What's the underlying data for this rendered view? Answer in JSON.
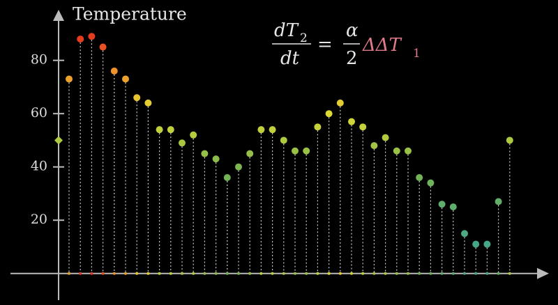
{
  "chart_data": {
    "type": "stem",
    "y_label": "Temperature",
    "equation": {
      "lhs_num": "dT",
      "lhs_num_sub": "2",
      "lhs_den": "dt",
      "eq": "=",
      "rhs_num": "α",
      "rhs_den": "2",
      "rhs_term": "ΔΔT",
      "rhs_sub": "1"
    },
    "values": [
      73,
      88,
      89,
      85,
      76,
      73,
      66,
      64,
      54,
      54,
      49,
      52,
      45,
      43,
      36,
      40,
      45,
      54,
      54,
      50,
      46,
      46,
      55,
      60,
      64,
      57,
      55,
      48,
      51,
      46,
      46,
      36,
      34,
      26,
      25,
      15,
      11,
      11,
      27,
      50
    ],
    "y_axis_marker": 50,
    "ylim": [
      -10,
      99
    ],
    "yticks": [
      20,
      40,
      60,
      80
    ]
  }
}
